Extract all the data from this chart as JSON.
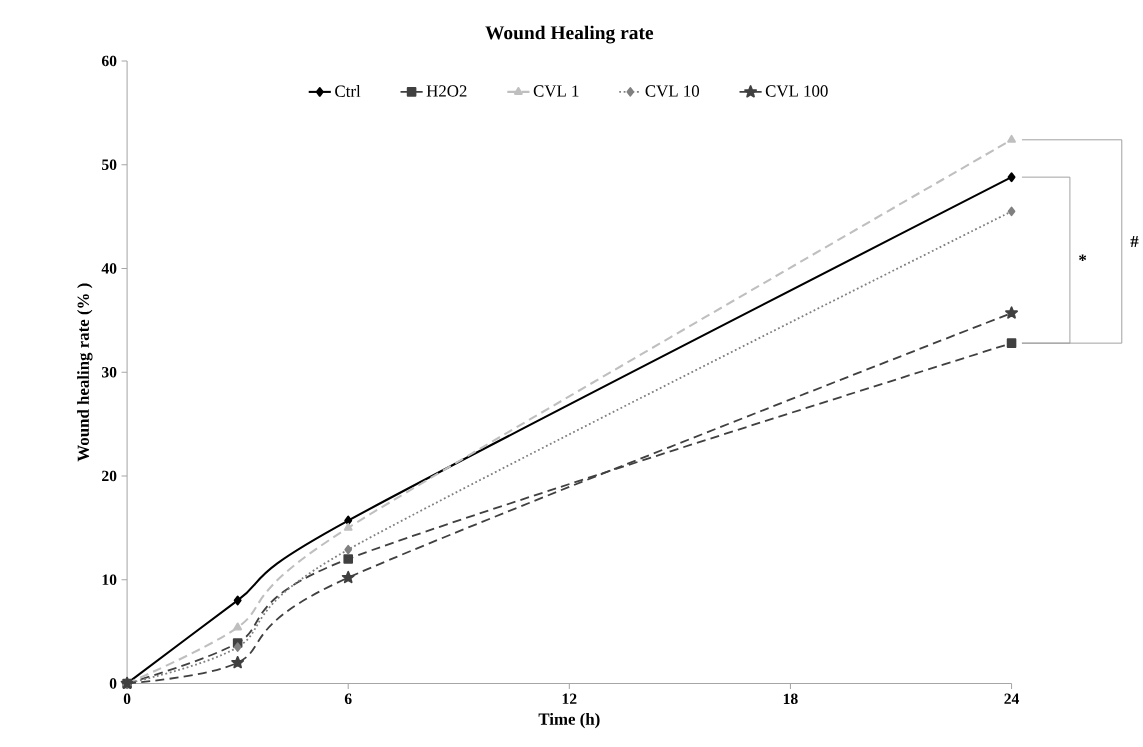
{
  "chart_data": {
    "type": "line",
    "title": "Wound Healing rate",
    "xlabel": "Time (h)",
    "ylabel": "Wound healing rate (% )",
    "x": [
      0,
      3,
      6,
      24
    ],
    "series": [
      {
        "name": "Ctrl",
        "color": "#000000",
        "marker": "diamond",
        "line_style": "solid",
        "values": [
          0,
          8.0,
          15.7,
          48.8
        ]
      },
      {
        "name": "H2O2",
        "color": "#404040",
        "marker": "square",
        "line_style": "dashed",
        "values": [
          0,
          3.9,
          12.0,
          32.8
        ]
      },
      {
        "name": "CVL 1",
        "color": "#bfbfbf",
        "marker": "triangle",
        "line_style": "dashed",
        "values": [
          0,
          5.4,
          15.0,
          52.4
        ]
      },
      {
        "name": "CVL 10",
        "color": "#808080",
        "marker": "diamond",
        "line_style": "dotted",
        "values": [
          0,
          3.5,
          12.9,
          45.5
        ]
      },
      {
        "name": "CVL 100",
        "color": "#404040",
        "marker": "star",
        "line_style": "dashed",
        "values": [
          0,
          2.0,
          10.2,
          35.7
        ]
      }
    ],
    "xlim": [
      0,
      24
    ],
    "xticks": [
      0,
      6,
      12,
      18,
      24
    ],
    "ylim": [
      0,
      60
    ],
    "yticks": [
      0,
      10,
      20,
      30,
      40,
      50,
      60
    ],
    "grid": false,
    "legend": "top",
    "annotations": [
      "*",
      "#"
    ]
  }
}
